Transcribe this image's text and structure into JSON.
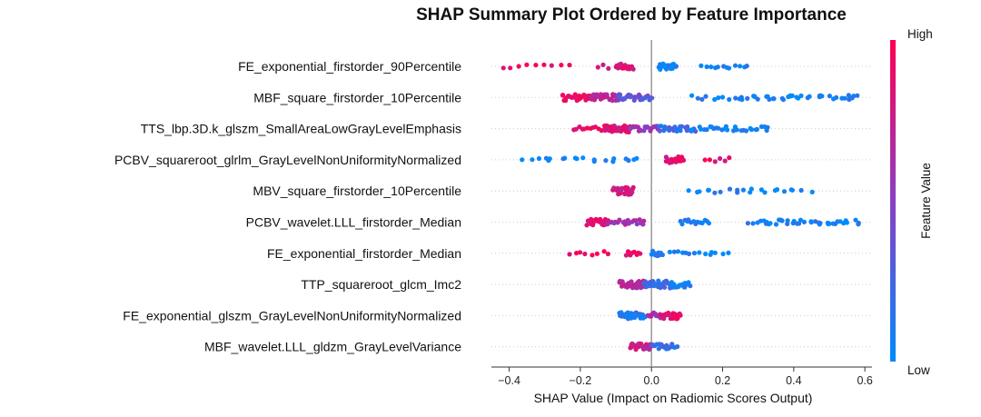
{
  "chart_data": {
    "type": "scatter",
    "title": "SHAP Summary Plot Ordered by Feature Importance",
    "xlabel": "SHAP Value (Impact on Radiomic Scores Output)",
    "xlim": [
      -0.45,
      0.62
    ],
    "xticks": [
      "−0.4",
      "−0.2",
      "0.0",
      "0.2",
      "0.4",
      "0.6"
    ],
    "xtick_values": [
      -0.4,
      -0.2,
      0.0,
      0.2,
      0.4,
      0.6
    ],
    "colorbar": {
      "label": "Feature Value",
      "high": "High",
      "low": "Low",
      "high_color": "#ff0052",
      "low_color": "#008bfb",
      "mid_color": "#8a3fc4"
    },
    "features": [
      {
        "name": "FE_exponential_firstorder_90Percentile",
        "clusters": [
          [
            -0.42,
            -0.3,
            0.95,
            6
          ],
          [
            -0.28,
            -0.23,
            0.9,
            3
          ],
          [
            -0.15,
            -0.12,
            0.8,
            3
          ],
          [
            -0.1,
            -0.05,
            0.85,
            16
          ],
          [
            0.02,
            0.07,
            0.05,
            18
          ],
          [
            0.14,
            0.27,
            0.05,
            12
          ]
        ]
      },
      {
        "name": "MBF_square_firstorder_10Percentile",
        "clusters": [
          [
            -0.25,
            -0.17,
            0.95,
            28
          ],
          [
            -0.17,
            -0.09,
            0.7,
            30
          ],
          [
            -0.09,
            0.0,
            0.35,
            28
          ],
          [
            0.11,
            0.25,
            0.05,
            10
          ],
          [
            0.25,
            0.59,
            0.05,
            38
          ]
        ]
      },
      {
        "name": "TTS_lbp.3D.k_glszm_SmallAreaLowGrayLevelEmphasis",
        "clusters": [
          [
            -0.22,
            -0.13,
            0.95,
            12
          ],
          [
            -0.13,
            -0.06,
            0.85,
            32
          ],
          [
            -0.06,
            0.02,
            0.55,
            20
          ],
          [
            0.02,
            0.12,
            0.2,
            26
          ],
          [
            0.12,
            0.33,
            0.05,
            28
          ]
        ]
      },
      {
        "name": "PCBV_squareroot_glrlm_GrayLevelNonUniformityNormalized",
        "clusters": [
          [
            -0.36,
            -0.03,
            0.05,
            20
          ],
          [
            0.04,
            0.09,
            0.85,
            20
          ],
          [
            0.15,
            0.22,
            0.9,
            6
          ]
        ]
      },
      {
        "name": "MBV_square_firstorder_10Percentile",
        "clusters": [
          [
            -0.11,
            -0.05,
            0.8,
            30
          ],
          [
            0.1,
            0.44,
            0.05,
            22
          ]
        ]
      },
      {
        "name": "PCBV_wavelet.LLL_firstorder_Median",
        "clusters": [
          [
            -0.18,
            -0.12,
            0.9,
            26
          ],
          [
            -0.12,
            -0.02,
            0.6,
            22
          ],
          [
            0.08,
            0.16,
            0.1,
            14
          ],
          [
            0.28,
            0.58,
            0.05,
            40
          ]
        ]
      },
      {
        "name": "FE_exponential_firstorder_Median",
        "clusters": [
          [
            -0.23,
            -0.12,
            0.95,
            8
          ],
          [
            -0.07,
            -0.03,
            0.9,
            8
          ],
          [
            0.0,
            0.03,
            0.1,
            10
          ],
          [
            0.05,
            0.21,
            0.05,
            14
          ]
        ]
      },
      {
        "name": "TTP_squareroot_glcm_Imc2",
        "clusters": [
          [
            -0.09,
            -0.02,
            0.7,
            36
          ],
          [
            -0.02,
            0.05,
            0.2,
            36
          ],
          [
            0.05,
            0.11,
            0.05,
            18
          ]
        ]
      },
      {
        "name": "FE_exponential_glszm_GrayLevelNonUniformityNormalized",
        "clusters": [
          [
            -0.09,
            -0.02,
            0.1,
            30
          ],
          [
            -0.01,
            0.03,
            0.6,
            14
          ],
          [
            0.03,
            0.08,
            0.9,
            22
          ]
        ]
      },
      {
        "name": "MBF_wavelet.LLL_gldzm_GrayLevelVariance",
        "clusters": [
          [
            -0.06,
            0.0,
            0.75,
            24
          ],
          [
            0.0,
            0.07,
            0.2,
            20
          ]
        ]
      }
    ]
  }
}
